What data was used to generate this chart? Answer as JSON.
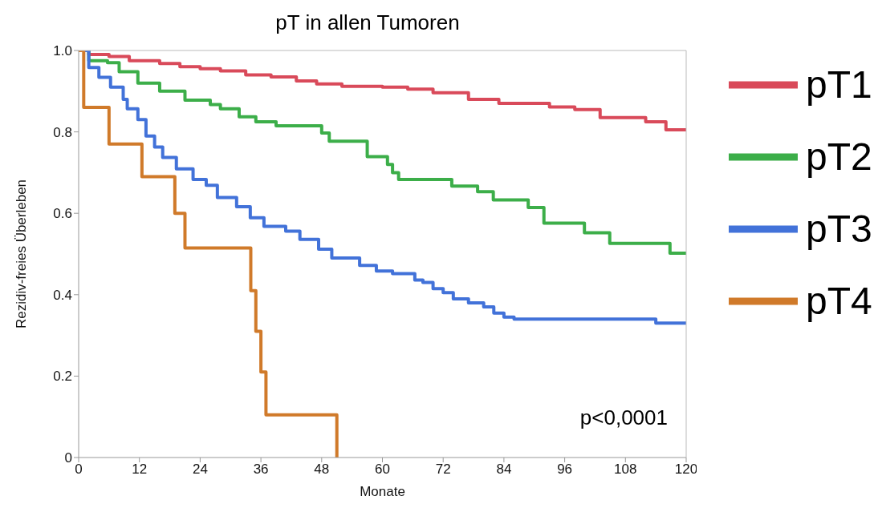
{
  "chart_data": {
    "type": "step",
    "title": "pT in allen Tumoren",
    "xlabel": "Monate",
    "ylabel": "Rezidiv-freies Überleben",
    "annotations": [
      "p<0,0001"
    ],
    "xlim": [
      0,
      120
    ],
    "xticks": [
      0,
      12,
      24,
      36,
      48,
      60,
      72,
      84,
      96,
      108,
      120
    ],
    "ylim": [
      0,
      1
    ],
    "yticks": [
      0,
      0.2,
      0.4,
      0.6,
      0.8,
      {
        "value": 1,
        "label": "1.0"
      }
    ],
    "legend": "right",
    "marker": "none",
    "line_style": "solid",
    "series": [
      {
        "name": "pT1",
        "color": "#d94a5a",
        "x": [
          0,
          2,
          6,
          10,
          16,
          20,
          24,
          28,
          33,
          38,
          43,
          47,
          52,
          60,
          65,
          70,
          77,
          83,
          93,
          98,
          103,
          112,
          116,
          120
        ],
        "values": [
          1,
          0.99,
          0.985,
          0.975,
          0.968,
          0.96,
          0.955,
          0.95,
          0.94,
          0.935,
          0.925,
          0.918,
          0.912,
          0.91,
          0.905,
          0.896,
          0.88,
          0.87,
          0.861,
          0.855,
          0.835,
          0.825,
          0.805,
          0.805
        ]
      },
      {
        "name": "pT2",
        "color": "#3cae49",
        "x": [
          0,
          2,
          5.7,
          8,
          11.7,
          16,
          21,
          26,
          28,
          31.7,
          35,
          39,
          48,
          49.5,
          57,
          61,
          62,
          63.2,
          73.7,
          78.8,
          81.9,
          88.8,
          91.9,
          99.9,
          104.9,
          116.8,
          120
        ],
        "values": [
          1,
          0.975,
          0.97,
          0.948,
          0.92,
          0.9,
          0.878,
          0.867,
          0.857,
          0.837,
          0.825,
          0.815,
          0.797,
          0.777,
          0.739,
          0.72,
          0.7,
          0.683,
          0.667,
          0.653,
          0.633,
          0.614,
          0.576,
          0.552,
          0.526,
          0.502,
          0.502
        ]
      },
      {
        "name": "pT3",
        "color": "#4272d9",
        "x": [
          0,
          2,
          4,
          6.3,
          8.8,
          9.6,
          11.7,
          13.3,
          15,
          16.6,
          19.3,
          22.6,
          25.2,
          27.4,
          31.2,
          33.9,
          36.6,
          40.9,
          43.7,
          47.4,
          50,
          55.5,
          58.8,
          62,
          66.4,
          68,
          70,
          72,
          74,
          77,
          80,
          82,
          84,
          86,
          114,
          120
        ],
        "values": [
          1,
          0.958,
          0.934,
          0.91,
          0.88,
          0.857,
          0.83,
          0.79,
          0.763,
          0.737,
          0.709,
          0.683,
          0.669,
          0.639,
          0.616,
          0.589,
          0.568,
          0.556,
          0.536,
          0.512,
          0.49,
          0.472,
          0.458,
          0.452,
          0.436,
          0.43,
          0.415,
          0.405,
          0.39,
          0.38,
          0.37,
          0.355,
          0.345,
          0.34,
          0.33,
          0.33
        ]
      },
      {
        "name": "pT4",
        "color": "#d07a2a",
        "x": [
          0,
          1,
          6,
          12.5,
          19,
          21,
          34,
          35,
          36,
          37,
          51
        ],
        "values": [
          1,
          0.86,
          0.77,
          0.69,
          0.6,
          0.515,
          0.41,
          0.31,
          0.21,
          0.105,
          0
        ]
      }
    ]
  }
}
